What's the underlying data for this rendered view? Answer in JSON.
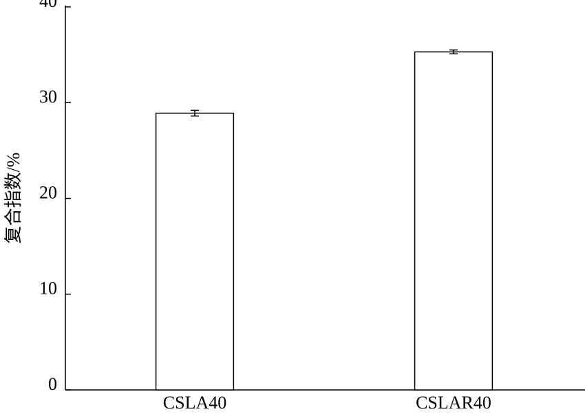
{
  "chart_data": {
    "type": "bar",
    "y_label": "复合指数/%",
    "categories": [
      "CSLA40",
      "CSLAR40"
    ],
    "values": [
      28.9,
      35.3
    ],
    "errors": [
      0.3,
      0.2
    ],
    "color": "#ffffff",
    "edge_color": "#000000",
    "ylim": [
      0,
      40
    ],
    "yticks": [
      0,
      10,
      20,
      30,
      40
    ],
    "grid": false
  }
}
